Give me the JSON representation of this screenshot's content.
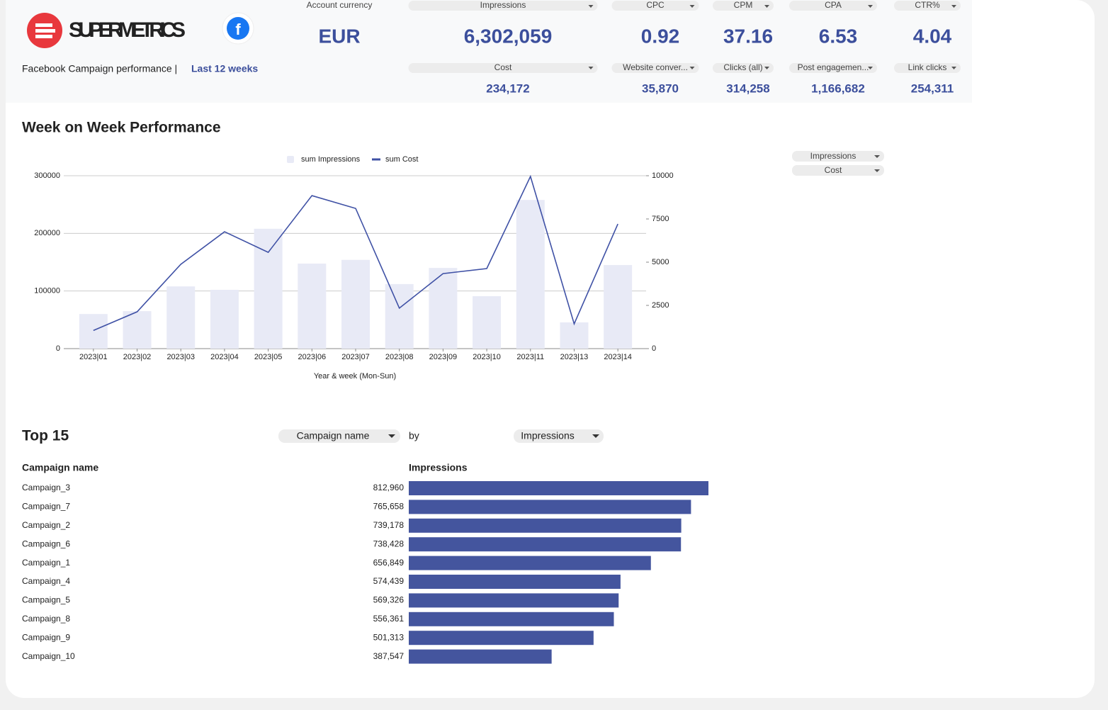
{
  "header": {
    "brand": "SUPERMETRICS",
    "subtitle": "Facebook Campaign performance |",
    "period": "Last 12 weeks"
  },
  "kpis": [
    {
      "label": "Account currency",
      "value": "EUR"
    },
    {
      "label": "Impressions",
      "value": "6,302,059"
    },
    {
      "label": "CPC",
      "value": "0.92"
    },
    {
      "label": "CPM",
      "value": "37.16"
    },
    {
      "label": "CPA",
      "value": "6.53"
    },
    {
      "label": "CTR%",
      "value": "4.04"
    }
  ],
  "kpis_secondary": [
    {
      "label": "Cost",
      "value": "234,172"
    },
    {
      "label": "Website conver...",
      "value": "35,870"
    },
    {
      "label": "Clicks (all)",
      "value": "314,258"
    },
    {
      "label": "Post engagemen...",
      "value": "1,166,682"
    },
    {
      "label": "Link clicks",
      "value": "254,311"
    }
  ],
  "chart_controls": [
    "Impressions",
    "Cost"
  ],
  "top": {
    "title": "Top 15",
    "dimension": "Campaign name",
    "by": "by",
    "metric": "Impressions"
  },
  "chart_data": [
    {
      "type": "combo",
      "title": "Week on Week Performance",
      "x_label": "Year & week (Mon-Sun)",
      "categories": [
        "2023|01",
        "2023|02",
        "2023|03",
        "2023|04",
        "2023|05",
        "2023|06",
        "2023|07",
        "2023|08",
        "2023|09",
        "2023|10",
        "2023|11",
        "2023|13",
        "2023|14"
      ],
      "series": [
        {
          "name": "sum Impressions",
          "type": "bar",
          "color": "#e8eaf6",
          "values": [
            60000,
            65000,
            108000,
            102000,
            208000,
            147500,
            154000,
            112000,
            140000,
            91000,
            258000,
            45500,
            145000
          ]
        },
        {
          "name": "sum Cost",
          "type": "line",
          "axis": "y2",
          "color": "#3f51a5",
          "values": [
            1050,
            2130,
            4880,
            6760,
            5570,
            8850,
            8110,
            2340,
            4340,
            4630,
            9960,
            1430,
            7210
          ]
        }
      ],
      "ylim": [
        0,
        300000
      ],
      "yticks": [
        0,
        100000,
        200000,
        300000
      ],
      "y2lim": [
        0,
        10000
      ],
      "y2ticks": [
        0,
        2500,
        5000,
        7500,
        10000
      ],
      "grid": true,
      "legend": "top"
    },
    {
      "type": "hbar",
      "category_label": "Campaign name",
      "value_label": "Impressions",
      "categories": [
        "Campaign_3",
        "Campaign_7",
        "Campaign_2",
        "Campaign_6",
        "Campaign_1",
        "Campaign_4",
        "Campaign_5",
        "Campaign_8",
        "Campaign_9",
        "Campaign_10"
      ],
      "values": [
        812960,
        765658,
        739178,
        738428,
        656849,
        574439,
        569326,
        556361,
        501313,
        387547
      ],
      "value_labels": [
        "812,960",
        "765,658",
        "739,178",
        "738,428",
        "656,849",
        "574,439",
        "569,326",
        "556,361",
        "501,313",
        "387,547"
      ],
      "color": "#44559e"
    }
  ]
}
